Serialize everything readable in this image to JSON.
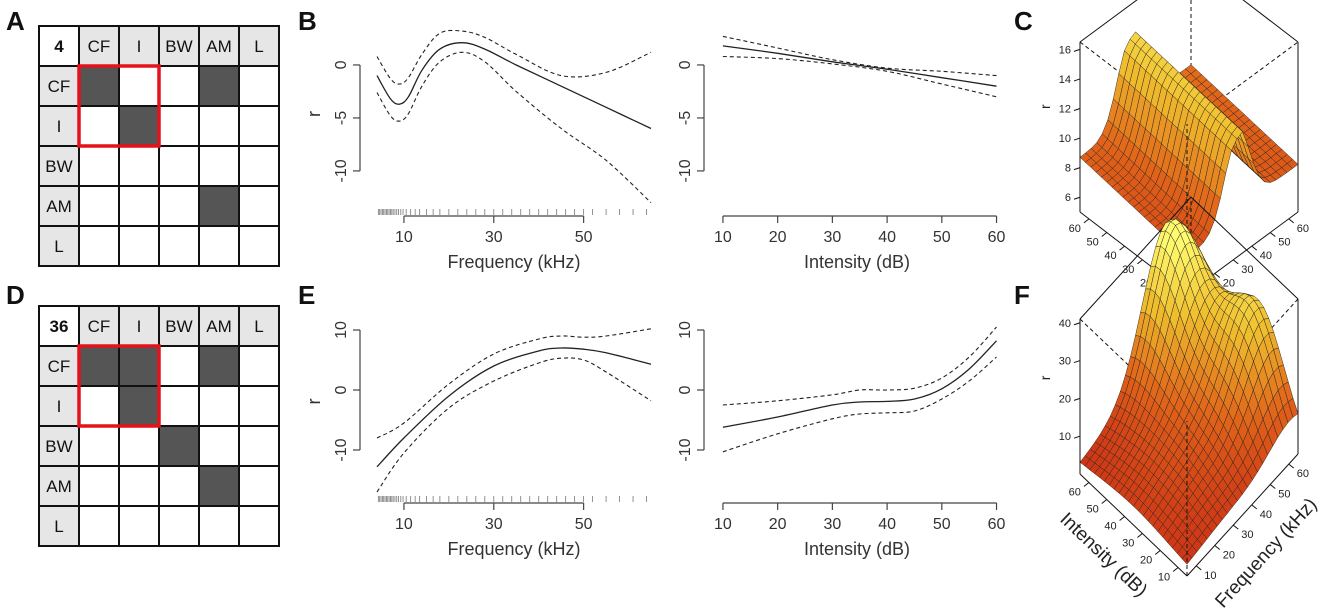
{
  "panel_letters": {
    "a": "A",
    "b": "B",
    "c": "C",
    "d": "D",
    "e": "E",
    "f": "F"
  },
  "matrices": [
    {
      "corner": "4",
      "headers": [
        "CF",
        "I",
        "BW",
        "AM",
        "L"
      ],
      "filled": [
        [
          0,
          0
        ],
        [
          0,
          3
        ],
        [
          1,
          1
        ],
        [
          3,
          3
        ]
      ]
    },
    {
      "corner": "36",
      "headers": [
        "CF",
        "I",
        "BW",
        "AM",
        "L"
      ],
      "filled": [
        [
          0,
          0
        ],
        [
          0,
          1
        ],
        [
          0,
          3
        ],
        [
          1,
          1
        ],
        [
          2,
          2
        ],
        [
          3,
          3
        ]
      ]
    }
  ],
  "chart_data": [
    {
      "type": "line",
      "panel": "B",
      "xlabel": "Frequency (kHz)",
      "ylabel": "r",
      "xticks": [
        10,
        30,
        50
      ],
      "yticks": [
        0,
        -5,
        -10
      ],
      "xlim": [
        2,
        67
      ],
      "ylim": [
        -13.5,
        3.3
      ],
      "series": [
        {
          "style": "solid",
          "x": [
            4,
            7,
            9,
            11,
            14,
            18,
            23,
            28,
            35,
            45,
            55,
            65
          ],
          "y": [
            -1,
            -3.2,
            -3.7,
            -3,
            -0.5,
            1.5,
            2.1,
            1.5,
            0,
            -2,
            -4,
            -6
          ]
        },
        {
          "style": "dashed",
          "x": [
            4,
            7,
            9,
            11,
            14,
            18,
            23,
            28,
            35,
            45,
            55,
            65
          ],
          "y": [
            0.8,
            -1.3,
            -1.8,
            -1.2,
            1,
            3,
            3.2,
            2.6,
            1,
            -1,
            -0.7,
            1.2
          ]
        },
        {
          "style": "dashed",
          "x": [
            4,
            7,
            9,
            11,
            14,
            18,
            23,
            28,
            35,
            45,
            55,
            65
          ],
          "y": [
            -2.6,
            -4.8,
            -5.3,
            -4.6,
            -2,
            0.3,
            1.2,
            0.3,
            -2.5,
            -6,
            -9,
            -13
          ]
        }
      ],
      "rug": [
        4.3,
        4.6,
        4.9,
        5.2,
        5.5,
        5.8,
        6.1,
        6.4,
        6.7,
        7,
        7.3,
        7.6,
        8,
        8.4,
        8.8,
        9.3,
        9.8,
        10.5,
        11.5,
        12.5,
        13.5,
        15,
        16.5,
        18,
        20,
        22,
        24,
        26,
        28,
        30,
        32,
        34,
        36,
        38,
        40,
        42,
        44,
        46,
        48,
        50,
        52,
        55,
        58,
        61,
        64
      ]
    },
    {
      "type": "line",
      "panel": "B",
      "xlabel": "Intensity (dB)",
      "ylabel": "",
      "xticks": [
        10,
        20,
        30,
        40,
        50,
        60
      ],
      "yticks": [
        0,
        -5,
        -10
      ],
      "xlim": [
        8,
        61
      ],
      "ylim": [
        -13.5,
        3.3
      ],
      "series": [
        {
          "style": "solid",
          "x": [
            10,
            20,
            30,
            40,
            50,
            60
          ],
          "y": [
            1.8,
            1.1,
            0.3,
            -0.4,
            -1.2,
            -2
          ]
        },
        {
          "style": "dashed",
          "x": [
            10,
            20,
            30,
            40,
            50,
            60
          ],
          "y": [
            2.7,
            1.6,
            0.5,
            -0.3,
            -0.6,
            -1
          ]
        },
        {
          "style": "dashed",
          "x": [
            10,
            20,
            30,
            40,
            50,
            60
          ],
          "y": [
            0.8,
            0.6,
            0.1,
            -0.6,
            -1.8,
            -3
          ]
        }
      ]
    },
    {
      "type": "line",
      "panel": "E",
      "xlabel": "Frequency (kHz)",
      "ylabel": "r",
      "xticks": [
        10,
        30,
        50
      ],
      "yticks": [
        10,
        0,
        -10
      ],
      "xlim": [
        2,
        67
      ],
      "ylim": [
        -17.5,
        12
      ],
      "series": [
        {
          "style": "solid",
          "x": [
            4,
            10,
            20,
            30,
            40,
            45,
            50,
            55,
            65
          ],
          "y": [
            -12.8,
            -8,
            -1,
            4,
            6.5,
            7,
            6.8,
            6.2,
            4.3
          ]
        },
        {
          "style": "dashed",
          "x": [
            4,
            10,
            20,
            30,
            40,
            45,
            50,
            55,
            65
          ],
          "y": [
            -8,
            -5.5,
            1,
            6,
            8.5,
            9,
            8.8,
            9,
            10.2
          ]
        },
        {
          "style": "dashed",
          "x": [
            4,
            10,
            20,
            30,
            40,
            45,
            50,
            55,
            65
          ],
          "y": [
            -17,
            -10.5,
            -3,
            1.5,
            4.5,
            5.3,
            5,
            3,
            -1.8
          ]
        }
      ],
      "rug": [
        4.3,
        4.6,
        4.9,
        5.2,
        5.5,
        5.8,
        6.1,
        6.4,
        6.7,
        7,
        7.3,
        7.6,
        8,
        8.4,
        8.8,
        9.3,
        9.8,
        10.5,
        11.5,
        12.5,
        13.5,
        15,
        16.5,
        18,
        20,
        22,
        24,
        26,
        28,
        30,
        32,
        34,
        36,
        38,
        40,
        42,
        44,
        46,
        48,
        50,
        52,
        55,
        58,
        61,
        64
      ]
    },
    {
      "type": "line",
      "panel": "E",
      "xlabel": "Intensity (dB)",
      "ylabel": "",
      "xticks": [
        10,
        20,
        30,
        40,
        50,
        60
      ],
      "yticks": [
        10,
        0,
        -10
      ],
      "xlim": [
        8,
        61
      ],
      "ylim": [
        -17.5,
        12
      ],
      "series": [
        {
          "style": "solid",
          "x": [
            10,
            20,
            30,
            35,
            40,
            45,
            50,
            55,
            60
          ],
          "y": [
            -6.2,
            -4.5,
            -2.5,
            -2,
            -1.9,
            -1.5,
            0.2,
            3.5,
            8.2
          ]
        },
        {
          "style": "dashed",
          "x": [
            10,
            20,
            30,
            35,
            40,
            45,
            50,
            55,
            60
          ],
          "y": [
            -2.5,
            -1.8,
            -0.8,
            0,
            0,
            0.3,
            2,
            5.5,
            10.5
          ]
        },
        {
          "style": "dashed",
          "x": [
            10,
            20,
            30,
            35,
            40,
            45,
            50,
            55,
            60
          ],
          "y": [
            -10.3,
            -7.3,
            -4.8,
            -4,
            -3.8,
            -3.5,
            -1.5,
            1.5,
            5.5
          ]
        }
      ]
    },
    {
      "type": "surface",
      "panel": "C",
      "zlabel": "r",
      "zticks": [
        6,
        8,
        10,
        12,
        14,
        16
      ],
      "left_ticks": [
        60,
        50,
        40,
        30,
        20,
        10
      ],
      "right_ticks": [
        10,
        20,
        30,
        40,
        50,
        60
      ],
      "left_axis_label": "",
      "right_axis_label": "",
      "zlim": [
        5,
        16.5
      ]
    },
    {
      "type": "surface",
      "panel": "F",
      "zlabel": "r",
      "zticks": [
        10,
        20,
        30,
        40
      ],
      "left_ticks": [
        60,
        50,
        40,
        30,
        20,
        10
      ],
      "right_ticks": [
        10,
        20,
        30,
        40,
        50,
        60
      ],
      "left_axis_label": "Intensity (dB)",
      "right_axis_label": "Frequency (kHz)",
      "zlim": [
        0,
        41
      ]
    }
  ]
}
